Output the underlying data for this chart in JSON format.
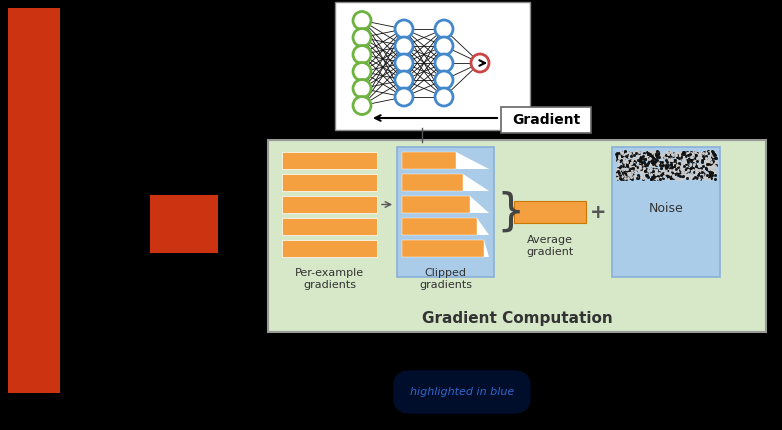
{
  "bg_color": "#000000",
  "red_bar_color": "#cc3311",
  "orange_color": "#f5a040",
  "light_green_box": "#d6e8c8",
  "light_blue_box": "#aacce8",
  "gradient_comp_title": "Gradient Computation",
  "gradient_label": "Gradient",
  "per_example_label": "Per-example\ngradients",
  "clipped_label": "Clipped\ngradients",
  "average_label": "Average\ngradient",
  "noise_label": "Noise",
  "highlighted_text": "highlighted in blue",
  "highlighted_color": "#3366cc",
  "nn_green": "#6db33f",
  "nn_blue": "#4488cc",
  "nn_red": "#cc4444"
}
